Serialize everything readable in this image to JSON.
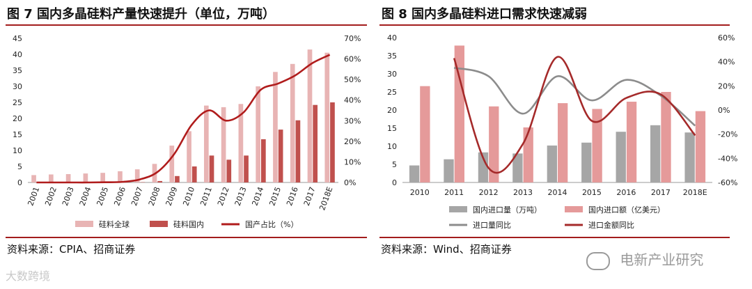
{
  "left": {
    "title": "图 7 国内多晶硅料产量快速提升（单位，万吨）",
    "source": "资料来源：CPIA、招商证券",
    "chart_data": {
      "type": "bar",
      "categories": [
        "2001",
        "2002",
        "2003",
        "2004",
        "2005",
        "2006",
        "2007",
        "2008",
        "2009",
        "2010",
        "2011",
        "2012",
        "2013",
        "2014",
        "2015",
        "2016",
        "2017",
        "2018E"
      ],
      "series": [
        {
          "name": "硅料全球",
          "kind": "bar",
          "color": "#e8b4b4",
          "values": [
            2.3,
            2.5,
            2.6,
            2.8,
            3.0,
            3.5,
            4.1,
            5.8,
            11.5,
            16.0,
            24.0,
            23.5,
            24.5,
            30.0,
            34.5,
            37.0,
            41.5,
            40.5
          ]
        },
        {
          "name": "硅料国内",
          "kind": "bar",
          "color": "#c0504d",
          "values": [
            0.01,
            0.01,
            0.01,
            0.01,
            0.02,
            0.05,
            0.1,
            0.45,
            2.0,
            5.0,
            8.4,
            7.1,
            8.4,
            13.5,
            16.5,
            19.4,
            24.2,
            25.0
          ]
        },
        {
          "name": "国产占比（%）",
          "kind": "line",
          "axis": "right",
          "color": "#b01c1c",
          "values": [
            0.0,
            0.0,
            0.0,
            0.0,
            0.1,
            0.3,
            1.5,
            5.0,
            14.0,
            28.0,
            35.0,
            30.0,
            34.0,
            45.0,
            48.0,
            52.0,
            58.0,
            62.0
          ]
        }
      ],
      "yleft": {
        "min": 0,
        "max": 45,
        "ticks": [
          0,
          5,
          10,
          15,
          20,
          25,
          30,
          35,
          40,
          45
        ]
      },
      "yright": {
        "min": 0,
        "max": 70,
        "ticks": [
          "0%",
          "10%",
          "20%",
          "30%",
          "40%",
          "50%",
          "60%",
          "70%"
        ],
        "tickValues": [
          0,
          10,
          20,
          30,
          40,
          50,
          60,
          70
        ]
      }
    }
  },
  "right": {
    "title": "图 8 国内多晶硅料进口需求快速减弱",
    "source": "资料来源：Wind、招商证券",
    "chart_data": {
      "type": "bar",
      "categories": [
        "2010",
        "2011",
        "2012",
        "2013",
        "2014",
        "2015",
        "2016",
        "2017",
        "2018E"
      ],
      "series": [
        {
          "name": "国内进口量（万吨）",
          "kind": "bar",
          "color": "#a6a6a6",
          "values": [
            4.7,
            6.4,
            8.3,
            8.0,
            10.2,
            11.0,
            14.0,
            15.8,
            13.8
          ]
        },
        {
          "name": "国内进口额（亿美元）",
          "kind": "bar",
          "color": "#e59a9a",
          "values": [
            26.6,
            37.8,
            21.0,
            15.2,
            21.9,
            20.3,
            22.3,
            25.0,
            19.7
          ]
        },
        {
          "name": "进口量同比",
          "kind": "line",
          "axis": "right",
          "color": "#8c8c8c",
          "values": [
            null,
            35.0,
            28.0,
            -3.0,
            28.0,
            8.0,
            25.0,
            12.0,
            -13.0
          ]
        },
        {
          "name": "进口金额同比",
          "kind": "line",
          "axis": "right",
          "color": "#a52a2a",
          "values": [
            null,
            43.0,
            -48.0,
            -28.0,
            44.0,
            -9.0,
            10.0,
            13.0,
            -21.0
          ]
        }
      ],
      "yleft": {
        "min": 0,
        "max": 40,
        "ticks": [
          0,
          5,
          10,
          15,
          20,
          25,
          30,
          35,
          40
        ]
      },
      "yright": {
        "min": -60,
        "max": 60,
        "ticks": [
          "-60%",
          "-40%",
          "-20%",
          "0%",
          "20%",
          "40%",
          "60%"
        ],
        "tickValues": [
          -60,
          -40,
          -20,
          0,
          20,
          40,
          60
        ]
      }
    }
  },
  "watermarks": {
    "left": "大数跨境",
    "right": "电新产业研究"
  }
}
